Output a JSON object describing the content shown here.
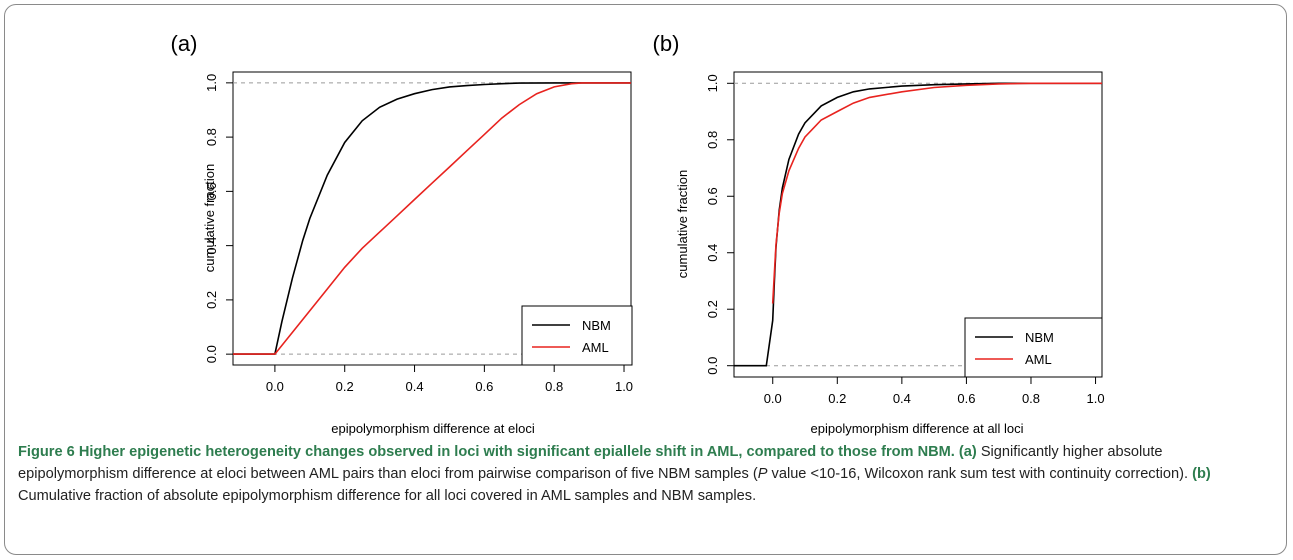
{
  "caption": {
    "title": "Figure 6 Higher epigenetic heterogeneity changes observed in loci with significant epiallele shift in AML, compared to those from NBM.",
    "panel_a_label": "(a)",
    "panel_a_text_1": " Significantly higher absolute epipolymorphism difference at eloci between AML pairs than eloci from pairwise comparison of five NBM samples (",
    "p_italic": "P",
    "panel_a_text_2": " value <10-16, Wilcoxon rank sum test with continuity correction). ",
    "panel_b_label": "(b)",
    "panel_b_text": " Cumulative fraction of absolute epipolymorphism difference for all loci covered in AML samples and NBM samples."
  },
  "chart_data": [
    {
      "type": "line",
      "panel_label": "(a)",
      "xlabel": "epipolymorphism difference at eloci",
      "ylabel": "cumulative fraction",
      "xlim": [
        -0.12,
        1.02
      ],
      "ylim": [
        -0.04,
        1.04
      ],
      "x_ticks": [
        "0.0",
        "0.2",
        "0.4",
        "0.6",
        "0.8",
        "1.0"
      ],
      "y_ticks": [
        "0.0",
        "0.2",
        "0.4",
        "0.6",
        "0.8",
        "1.0"
      ],
      "reference_lines": [
        0,
        1
      ],
      "legend_position": "bottom-right",
      "series": [
        {
          "name": "NBM",
          "color": "#000000",
          "x": [
            -0.12,
            0.0,
            0.02,
            0.05,
            0.08,
            0.1,
            0.15,
            0.2,
            0.25,
            0.3,
            0.35,
            0.4,
            0.45,
            0.5,
            0.55,
            0.6,
            0.65,
            0.7,
            0.8,
            0.9,
            1.0,
            1.02
          ],
          "y": [
            0.0,
            0.0,
            0.12,
            0.28,
            0.42,
            0.5,
            0.66,
            0.78,
            0.86,
            0.91,
            0.94,
            0.96,
            0.975,
            0.985,
            0.99,
            0.994,
            0.997,
            0.999,
            1.0,
            1.0,
            1.0,
            1.0
          ]
        },
        {
          "name": "AML",
          "color": "#e8231f",
          "x": [
            -0.12,
            0.0,
            0.05,
            0.1,
            0.15,
            0.2,
            0.25,
            0.3,
            0.35,
            0.4,
            0.45,
            0.5,
            0.55,
            0.6,
            0.65,
            0.7,
            0.75,
            0.8,
            0.85,
            0.88,
            0.95,
            1.02
          ],
          "y": [
            0.0,
            0.0,
            0.08,
            0.16,
            0.24,
            0.32,
            0.39,
            0.45,
            0.51,
            0.57,
            0.63,
            0.69,
            0.75,
            0.81,
            0.87,
            0.92,
            0.96,
            0.985,
            0.997,
            1.0,
            1.0,
            1.0
          ]
        }
      ]
    },
    {
      "type": "line",
      "panel_label": "(b)",
      "xlabel": "epipolymorphism difference at all loci",
      "ylabel": "cumulative fraction",
      "xlim": [
        -0.12,
        1.02
      ],
      "ylim": [
        -0.04,
        1.04
      ],
      "x_ticks": [
        "0.0",
        "0.2",
        "0.4",
        "0.6",
        "0.8",
        "1.0"
      ],
      "y_ticks": [
        "0.0",
        "0.2",
        "0.4",
        "0.6",
        "0.8",
        "1.0"
      ],
      "reference_lines": [
        0,
        1
      ],
      "legend_position": "bottom-right",
      "series": [
        {
          "name": "NBM",
          "color": "#000000",
          "x": [
            -0.12,
            -0.02,
            0.0,
            0.005,
            0.01,
            0.02,
            0.03,
            0.05,
            0.08,
            0.1,
            0.15,
            0.2,
            0.25,
            0.3,
            0.4,
            0.5,
            0.6,
            0.7,
            0.8,
            1.02
          ],
          "y": [
            0.0,
            0.0,
            0.16,
            0.3,
            0.42,
            0.55,
            0.63,
            0.73,
            0.82,
            0.86,
            0.92,
            0.95,
            0.97,
            0.98,
            0.99,
            0.995,
            0.998,
            1.0,
            1.0,
            1.0
          ]
        },
        {
          "name": "AML",
          "color": "#e8231f",
          "x": [
            0.0,
            0.005,
            0.01,
            0.02,
            0.03,
            0.05,
            0.08,
            0.1,
            0.15,
            0.2,
            0.25,
            0.3,
            0.4,
            0.5,
            0.6,
            0.7,
            0.8,
            1.02
          ],
          "y": [
            0.22,
            0.33,
            0.43,
            0.54,
            0.61,
            0.69,
            0.77,
            0.81,
            0.87,
            0.9,
            0.93,
            0.95,
            0.97,
            0.985,
            0.993,
            0.998,
            1.0,
            1.0
          ]
        }
      ]
    }
  ]
}
